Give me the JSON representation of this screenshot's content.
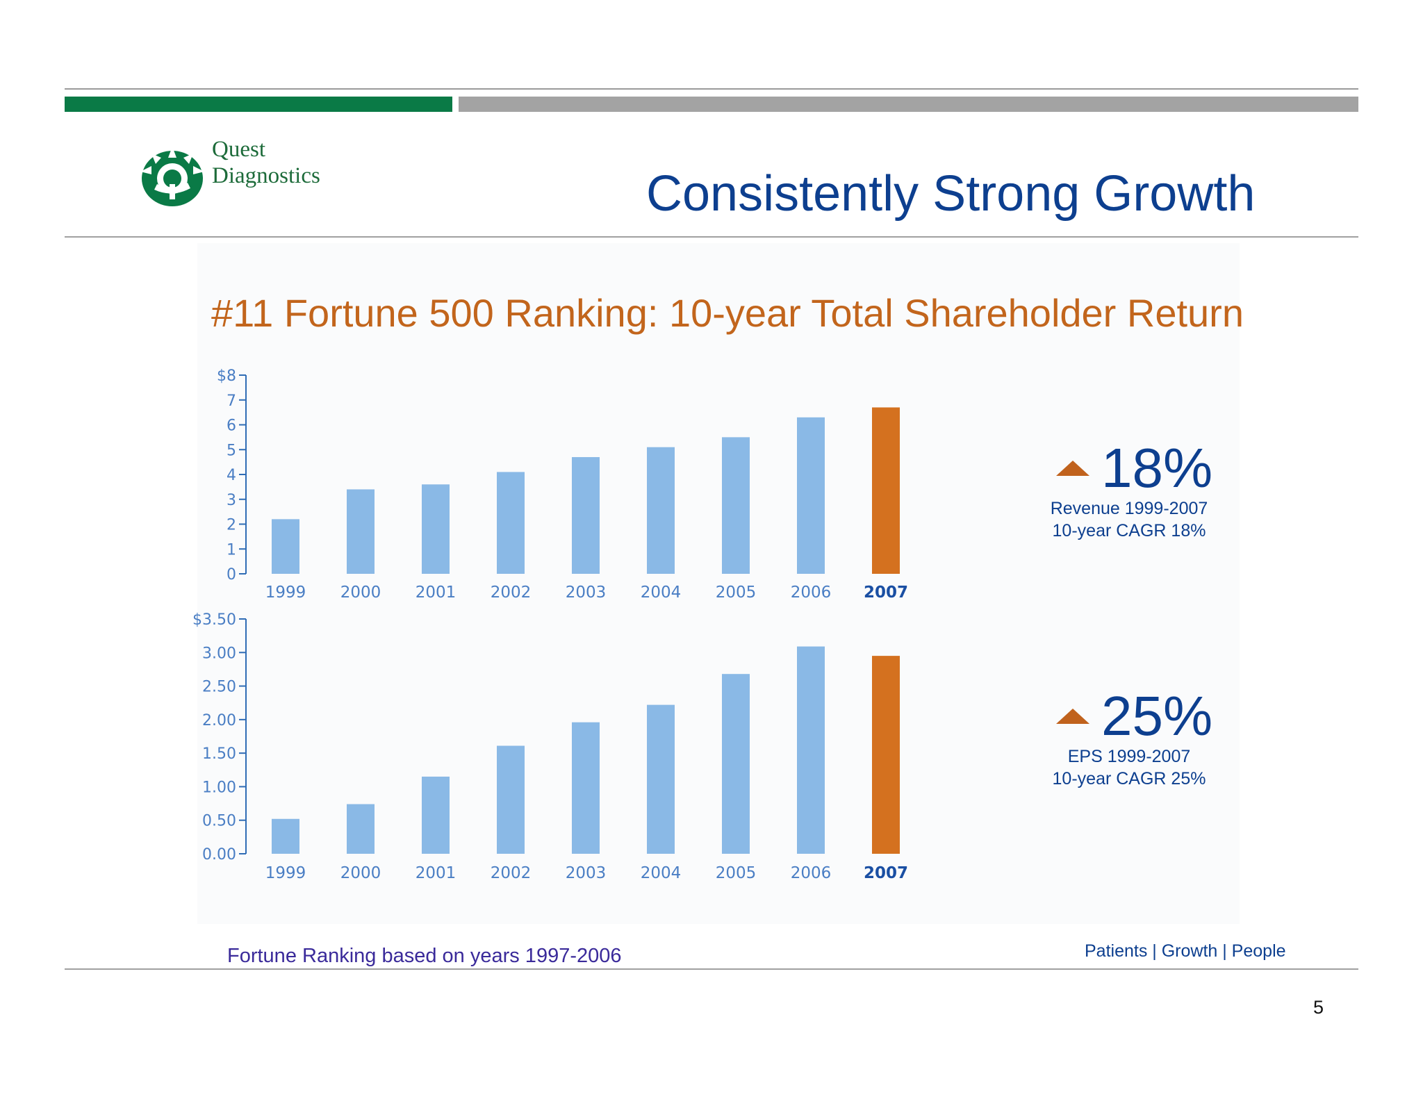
{
  "brand": {
    "line1": "Quest",
    "line2": "Diagnostics"
  },
  "slide": {
    "title": "Consistently Strong Growth",
    "subtitle": "#11 Fortune 500 Ranking: 10-year Total Shareholder Return",
    "footnote": "Fortune Ranking based on years 1997-2006",
    "tagline": "Patients | Growth | People",
    "page_number": "5"
  },
  "metrics": [
    {
      "value": "18%",
      "line1": "Revenue 1999-2007",
      "line2": "10-year CAGR 18%"
    },
    {
      "value": "25%",
      "line1": "EPS 1999-2007",
      "line2": "10-year CAGR 25%"
    }
  ],
  "colors": {
    "bar": "#8ab9e6",
    "highlight": "#d4711f",
    "axis": "#2f6cb5",
    "tick_label": "#4a7ec4",
    "title": "#0d3f8f",
    "subtitle": "#c2651c",
    "brand_green": "#0a7a46"
  },
  "chart_data": [
    {
      "type": "bar",
      "title": "Revenue",
      "categories": [
        "1999",
        "2000",
        "2001",
        "2002",
        "2003",
        "2004",
        "2005",
        "2006",
        "2007"
      ],
      "values": [
        2.2,
        3.4,
        3.6,
        4.1,
        4.7,
        5.1,
        5.5,
        6.3,
        6.7
      ],
      "highlight_index": 8,
      "ylim": [
        0,
        8
      ],
      "yticks": [
        0,
        1,
        2,
        3,
        4,
        5,
        6,
        7,
        8
      ],
      "ytick_labels": [
        "0",
        "1",
        "2",
        "3",
        "4",
        "5",
        "6",
        "7",
        "$8"
      ],
      "xlabel": "",
      "ylabel": "",
      "grid": false
    },
    {
      "type": "bar",
      "title": "EPS",
      "categories": [
        "1999",
        "2000",
        "2001",
        "2002",
        "2003",
        "2004",
        "2005",
        "2006",
        "2007"
      ],
      "values": [
        0.52,
        0.74,
        1.15,
        1.61,
        1.96,
        2.22,
        2.68,
        3.09,
        2.95
      ],
      "highlight_index": 8,
      "ylim": [
        0,
        3.5
      ],
      "yticks": [
        0,
        0.5,
        1,
        1.5,
        2,
        2.5,
        3,
        3.5
      ],
      "ytick_labels": [
        "0.00",
        "0.50",
        "1.00",
        "1.50",
        "2.00",
        "2.50",
        "3.00",
        "$3.50"
      ],
      "xlabel": "",
      "ylabel": "",
      "grid": false
    }
  ]
}
